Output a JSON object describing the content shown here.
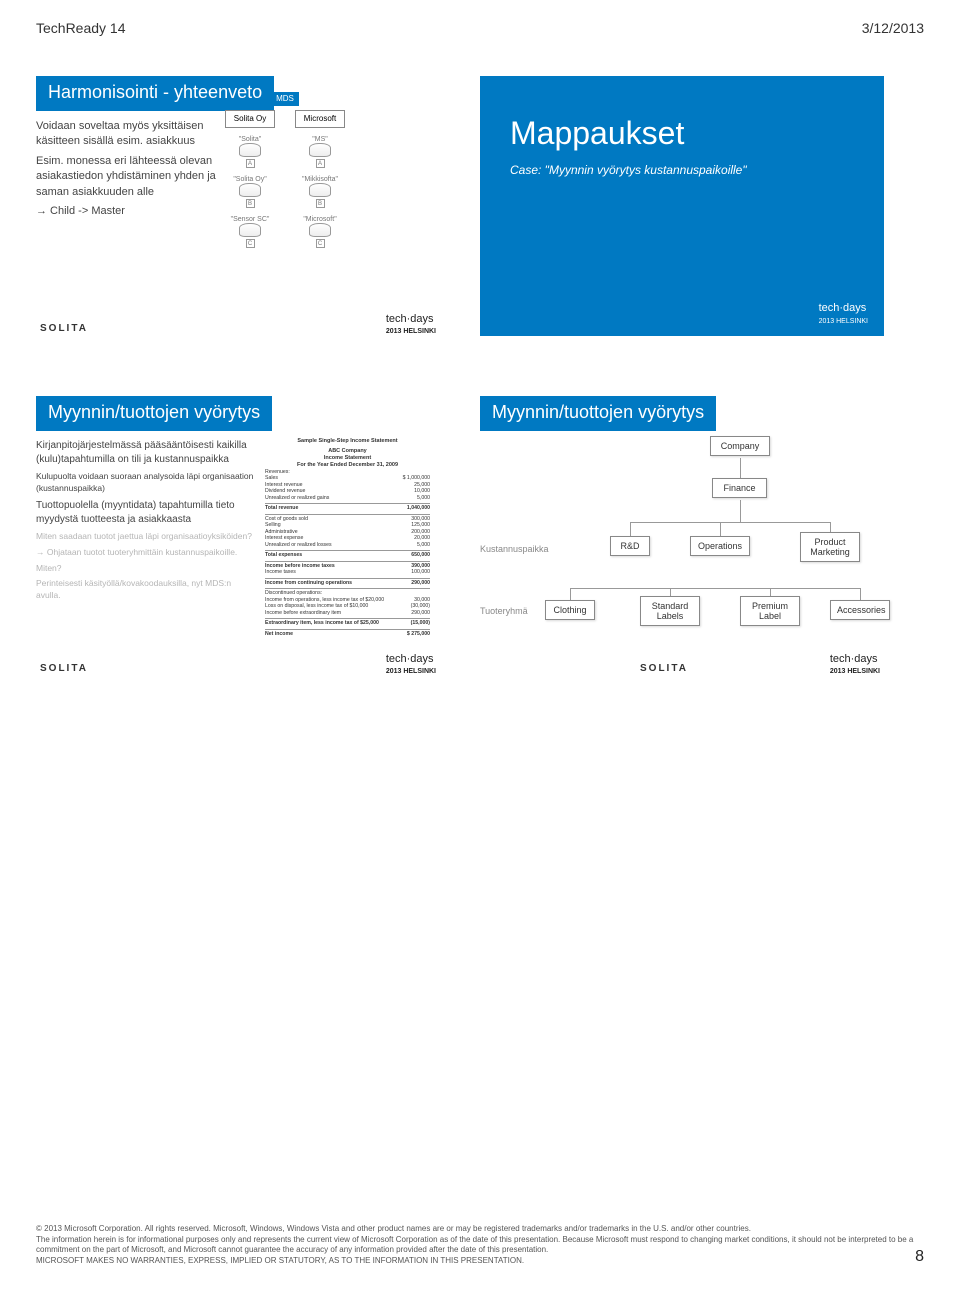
{
  "top": {
    "left": "TechReady 14",
    "right": "3/12/2013"
  },
  "brand": {
    "solita": "SOLITA",
    "techdays": "tech·days",
    "year": "2013 HELSINKI"
  },
  "s1": {
    "title": "Harmonisointi - yhteenveto",
    "l1": "Voidaan soveltaa myös yksittäisen käsitteen sisällä esim. asiakkuus",
    "l2": "Esim. monessa eri lähteessä olevan asiakastiedon yhdistäminen yhden ja saman asiakkuuden alle",
    "l3": "→ Child -> Master",
    "mds": {
      "root": "MDS",
      "left": "Solita Oy",
      "right": "Microsoft",
      "a_left": "\"Solita\"",
      "a_right": "\"MS\"",
      "b_left": "\"Solita Oy\"",
      "b_right": "\"Mikkisofta\"",
      "c_left": "\"Sensor SC\"",
      "c_right": "\"Microsoft\""
    }
  },
  "s2": {
    "title": "Mappaukset",
    "sub": "Case: \"Myynnin vyörytys kustannuspaikoille\""
  },
  "s3": {
    "title": "Myynnin/tuottojen vyörytys",
    "l1": "Kirjanpitojärjestelmässä pääsääntöisesti kaikilla (kulu)tapahtumilla on tili ja kustannuspaikka",
    "l2": "Kulupuolta voidaan suoraan analysoida läpi organisaation (kustannuspaikka)",
    "l3": "Tuottopuolella (myyntidata) tapahtumilla tieto myydystä tuotteesta ja asiakkaasta",
    "l4": "Miten saadaan tuotot jaettua läpi organisaatioyksiköiden?",
    "l5": "→ Ohjataan tuotot tuoteryhmittäin kustannuspaikoille.",
    "l6": "Miten?",
    "l7": "Perinteisesti käsityöllä/kovakoodauksilla, nyt MDS:n avulla.",
    "stmt": {
      "h1": "Sample Single-Step Income Statement",
      "h2": "ABC Company",
      "h3": "Income Statement",
      "h4": "For the Year Ended December 31, 2009",
      "lines": [
        [
          "Revenues:",
          ""
        ],
        [
          "Sales",
          "$ 1,000,000"
        ],
        [
          "Interest revenue",
          "25,000"
        ],
        [
          "Dividend revenue",
          "10,000"
        ],
        [
          "Unrealized or realized gains",
          "5,000"
        ],
        [
          "Total revenue",
          "1,040,000"
        ],
        [
          "Cost of goods sold",
          "300,000"
        ],
        [
          "Selling",
          "125,000"
        ],
        [
          "Administrative",
          "200,000"
        ],
        [
          "Interest expense",
          "20,000"
        ],
        [
          "Unrealized or realized losses",
          "5,000"
        ],
        [
          "Total expenses",
          "650,000"
        ],
        [
          "Income before income taxes",
          "390,000"
        ],
        [
          "Income taxes",
          "100,000"
        ],
        [
          "Income from continuing operations",
          "290,000"
        ],
        [
          "Discontinued operations:",
          ""
        ],
        [
          "Income from operations, less income tax of $20,000",
          "30,000"
        ],
        [
          "Loss on disposal, less income tax of $10,000",
          "(30,000)"
        ],
        [
          "Income before extraordinary item",
          "290,000"
        ],
        [
          "Extraordinary item, less income tax of $25,000",
          "(15,000)"
        ],
        [
          "Net income",
          "$ 275,000"
        ]
      ]
    }
  },
  "s4": {
    "title": "Myynnin/tuottojen vyörytys",
    "lbl_kp": "Kustannuspaikka",
    "lbl_tr": "Tuoteryhmä",
    "nodes": {
      "company": "Company",
      "finance": "Finance",
      "rd": "R&D",
      "ops": "Operations",
      "pm": "Product Marketing",
      "clothing": "Clothing",
      "std": "Standard Labels",
      "prem": "Premium Label",
      "acc": "Accessories"
    }
  },
  "footer": {
    "l1": "© 2013 Microsoft Corporation. All rights reserved. Microsoft, Windows, Windows Vista and other product names are or may be registered trademarks and/or trademarks in the U.S. and/or other countries.",
    "l2": "The information herein is for informational purposes only and represents the current view of Microsoft Corporation as of the date of this presentation. Because Microsoft must respond to changing market conditions, it should not be interpreted to be a commitment on the part of Microsoft, and Microsoft cannot guarantee the accuracy of any information provided after the date of this presentation.",
    "l3": "MICROSOFT MAKES NO WARRANTIES, EXPRESS, IMPLIED OR STATUTORY, AS TO THE INFORMATION IN THIS PRESENTATION.",
    "page": "8"
  }
}
